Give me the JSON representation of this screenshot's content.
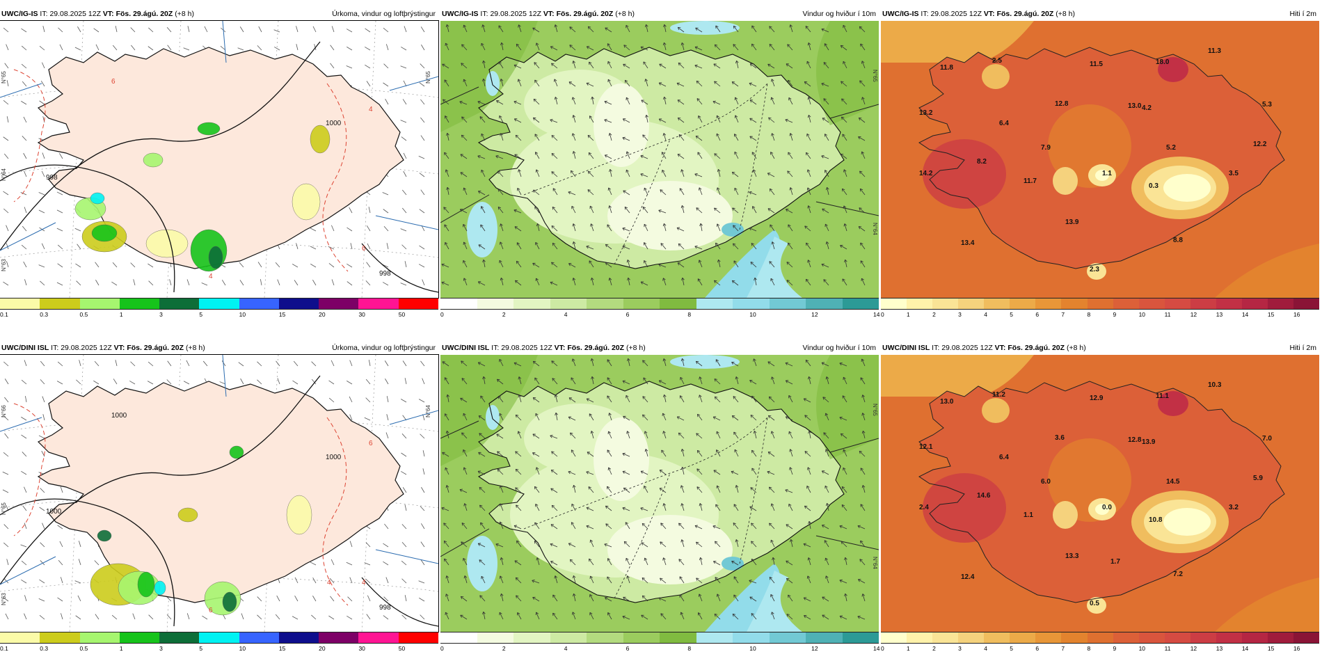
{
  "panels": [
    {
      "id": "p11",
      "model": "UWC/IG-IS",
      "it_label": "IT:",
      "it_value": "29.08.2025 12Z",
      "vt_label": "VT:",
      "vt_value": "Fös. 29.ágú. 20Z",
      "lead": "(+8 h)",
      "field": "Úrkoma, vindur og loftþrýstingur",
      "kind": "precip",
      "colorbar": {
        "colors": [
          "#fbfba8",
          "#cccc1c",
          "#a6f56f",
          "#16c31b",
          "#0d6e38",
          "#00f2f2",
          "#3764ff",
          "#0e0e8c",
          "#7d0066",
          "#ff1493",
          "#ff0000"
        ],
        "labels": [
          "0.1",
          "0.3",
          "0.5",
          "1",
          "3",
          "5",
          "10",
          "15",
          "20",
          "30",
          "50"
        ]
      },
      "isobars": [
        "1000",
        "998",
        "998",
        "6",
        "4",
        "6",
        "4"
      ],
      "latlabels": [
        "N°65",
        "N°64",
        "N°65",
        "N°63"
      ]
    },
    {
      "id": "p12",
      "model": "UWC/IG-IS",
      "it_label": "IT:",
      "it_value": "29.08.2025 12Z",
      "vt_label": "VT:",
      "vt_value": "Fös. 29.ágú. 20Z",
      "lead": "(+8 h)",
      "field": "Vindur og hviður í 10m",
      "kind": "wind",
      "colorbar": {
        "colors": [
          "#ffffff",
          "#f4fbe0",
          "#e2f5c2",
          "#cdeaa3",
          "#b3db7f",
          "#9bcc5e",
          "#80bb40",
          "#aee8f0",
          "#92dcea",
          "#72c9d4",
          "#4fb1b5",
          "#2c9a96"
        ],
        "labels": [
          "0",
          "2",
          "4",
          "6",
          "8",
          "10",
          "12",
          "14"
        ]
      },
      "latlabels": [
        "N°65",
        "N°64"
      ]
    },
    {
      "id": "p13",
      "model": "UWC/IG-IS",
      "it_label": "IT:",
      "it_value": "29.08.2025 12Z",
      "vt_label": "VT:",
      "vt_value": "Fös. 29.ágú. 20Z",
      "lead": "(+8 h)",
      "field": "Hiti í 2m",
      "kind": "temp",
      "colorbar": {
        "colors": [
          "#ffffcc",
          "#fff2aa",
          "#fae496",
          "#f5d27d",
          "#f0bd5e",
          "#ecaa48",
          "#e89638",
          "#e3832e",
          "#df7030",
          "#dc6038",
          "#d9553d",
          "#d54b42",
          "#cc3d44",
          "#c23045",
          "#b52643",
          "#a01c3c",
          "#8a1436"
        ],
        "labels": [
          "0",
          "1",
          "2",
          "3",
          "4",
          "5",
          "6",
          "7",
          "8",
          "9",
          "10",
          "11",
          "12",
          "13",
          "14",
          "15",
          "16"
        ]
      },
      "values": [
        "2.5",
        "11.8",
        "11.5",
        "18.0",
        "11.3",
        "13.2",
        "12.8",
        "4.2",
        "13.0",
        "5.3",
        "6.4",
        "7.9",
        "12.2",
        "5.2",
        "8.2",
        "14.2",
        "11.7",
        "1.1",
        "3.5",
        "0.3",
        "13.9",
        "13.4",
        "8.8",
        "2.3"
      ]
    },
    {
      "id": "p21",
      "model": "UWC/DINI ISL",
      "it_label": "IT:",
      "it_value": "29.08.2025 12Z",
      "vt_label": "VT:",
      "vt_value": "Fös. 29.ágú. 20Z",
      "lead": "(+8 h)",
      "field": "Úrkoma, vindur og loftþrýstingur",
      "kind": "precip",
      "colorbar": {
        "colors": [
          "#fbfba8",
          "#cccc1c",
          "#a6f56f",
          "#16c31b",
          "#0d6e38",
          "#00f2f2",
          "#3764ff",
          "#0e0e8c",
          "#7d0066",
          "#ff1493",
          "#ff0000"
        ],
        "labels": [
          "0.1",
          "0.3",
          "0.5",
          "1",
          "3",
          "5",
          "10",
          "15",
          "20",
          "30",
          "50"
        ]
      },
      "isobars": [
        "1000",
        "1000",
        "998",
        "1000",
        "6",
        "4",
        "6",
        "4"
      ],
      "latlabels": [
        "N°66",
        "N°65",
        "N°64",
        "N°63"
      ]
    },
    {
      "id": "p22",
      "model": "UWC/DINI ISL",
      "it_label": "IT:",
      "it_value": "29.08.2025 12Z",
      "vt_label": "VT:",
      "vt_value": "Fös. 29.ágú. 20Z",
      "lead": "(+8 h)",
      "field": "Vindur og hviður í 10m",
      "kind": "wind",
      "colorbar": {
        "colors": [
          "#ffffff",
          "#f4fbe0",
          "#e2f5c2",
          "#cdeaa3",
          "#b3db7f",
          "#9bcc5e",
          "#80bb40",
          "#aee8f0",
          "#92dcea",
          "#72c9d4",
          "#4fb1b5",
          "#2c9a96"
        ],
        "labels": [
          "0",
          "2",
          "4",
          "6",
          "8",
          "10",
          "12",
          "14"
        ]
      },
      "latlabels": [
        "N°65",
        "N°64"
      ]
    },
    {
      "id": "p23",
      "model": "UWC/DINI ISL",
      "it_label": "IT:",
      "it_value": "29.08.2025 12Z",
      "vt_label": "VT:",
      "vt_value": "Fös. 29.ágú. 20Z",
      "lead": "(+8 h)",
      "field": "Hiti í 2m",
      "kind": "temp",
      "colorbar": {
        "colors": [
          "#ffffcc",
          "#fff2aa",
          "#fae496",
          "#f5d27d",
          "#f0bd5e",
          "#ecaa48",
          "#e89638",
          "#e3832e",
          "#df7030",
          "#dc6038",
          "#d9553d",
          "#d54b42",
          "#cc3d44",
          "#c23045",
          "#b52643",
          "#a01c3c",
          "#8a1436"
        ],
        "labels": [
          "0",
          "1",
          "2",
          "3",
          "4",
          "5",
          "6",
          "7",
          "8",
          "9",
          "10",
          "11",
          "12",
          "13",
          "14",
          "15",
          "16"
        ]
      },
      "values": [
        "11.2",
        "13.0",
        "12.9",
        "11.1",
        "10.3",
        "12.1",
        "3.6",
        "13.9",
        "12.8",
        "7.0",
        "6.4",
        "6.0",
        "5.9",
        "14.5",
        "14.6",
        "2.4",
        "1.1",
        "0.0",
        "3.2",
        "10.8",
        "13.3",
        "12.4",
        "7.2",
        "0.5",
        "1.7"
      ]
    }
  ]
}
